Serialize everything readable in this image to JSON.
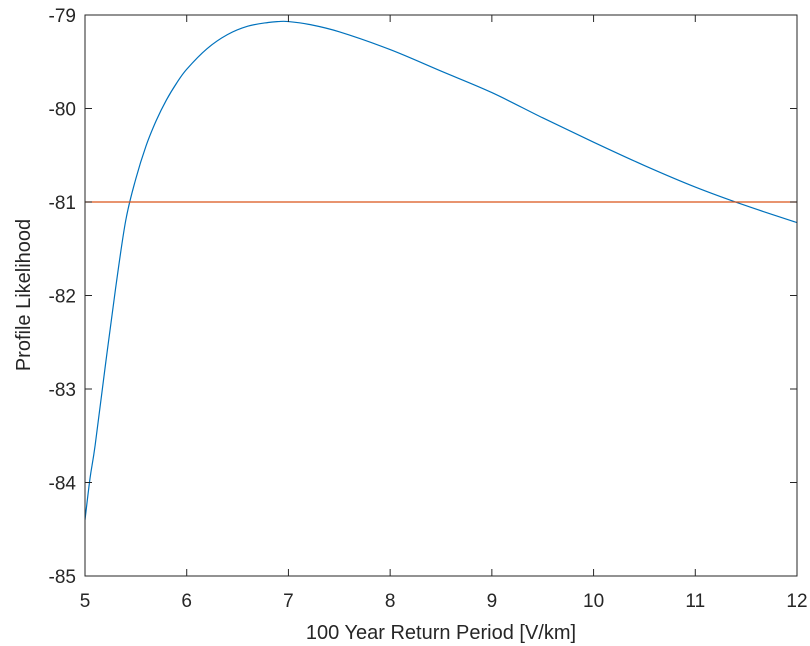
{
  "chart_data": {
    "type": "line",
    "title": "",
    "xlabel": "100 Year Return Period [V/km]",
    "ylabel": "Profile Likelihood",
    "xlim": [
      5,
      12
    ],
    "ylim": [
      -85,
      -79
    ],
    "xticks": [
      5,
      6,
      7,
      8,
      9,
      10,
      11,
      12
    ],
    "yticks": [
      -79,
      -80,
      -81,
      -82,
      -83,
      -84,
      -85
    ],
    "grid": false,
    "legend": "none",
    "series": [
      {
        "color": "#0072BD",
        "x": [
          5.0,
          5.05,
          5.1,
          5.2,
          5.3,
          5.4,
          5.5,
          5.6,
          5.7,
          5.8,
          5.9,
          6.0,
          6.2,
          6.4,
          6.6,
          6.8,
          6.9,
          7.0,
          7.2,
          7.5,
          8.0,
          8.5,
          9.0,
          9.5,
          10.0,
          10.5,
          11.0,
          11.5,
          12.0
        ],
        "y": [
          -84.4,
          -83.95,
          -83.6,
          -82.75,
          -81.93,
          -81.2,
          -80.75,
          -80.4,
          -80.13,
          -79.91,
          -79.73,
          -79.58,
          -79.36,
          -79.21,
          -79.12,
          -79.08,
          -79.07,
          -79.07,
          -79.1,
          -79.18,
          -79.37,
          -79.6,
          -79.83,
          -80.1,
          -80.36,
          -80.61,
          -80.84,
          -81.04,
          -81.22
        ]
      },
      {
        "color": "#D95319",
        "x": [
          5.0,
          12.0
        ],
        "y": [
          -81.0,
          -81.0
        ]
      }
    ]
  }
}
